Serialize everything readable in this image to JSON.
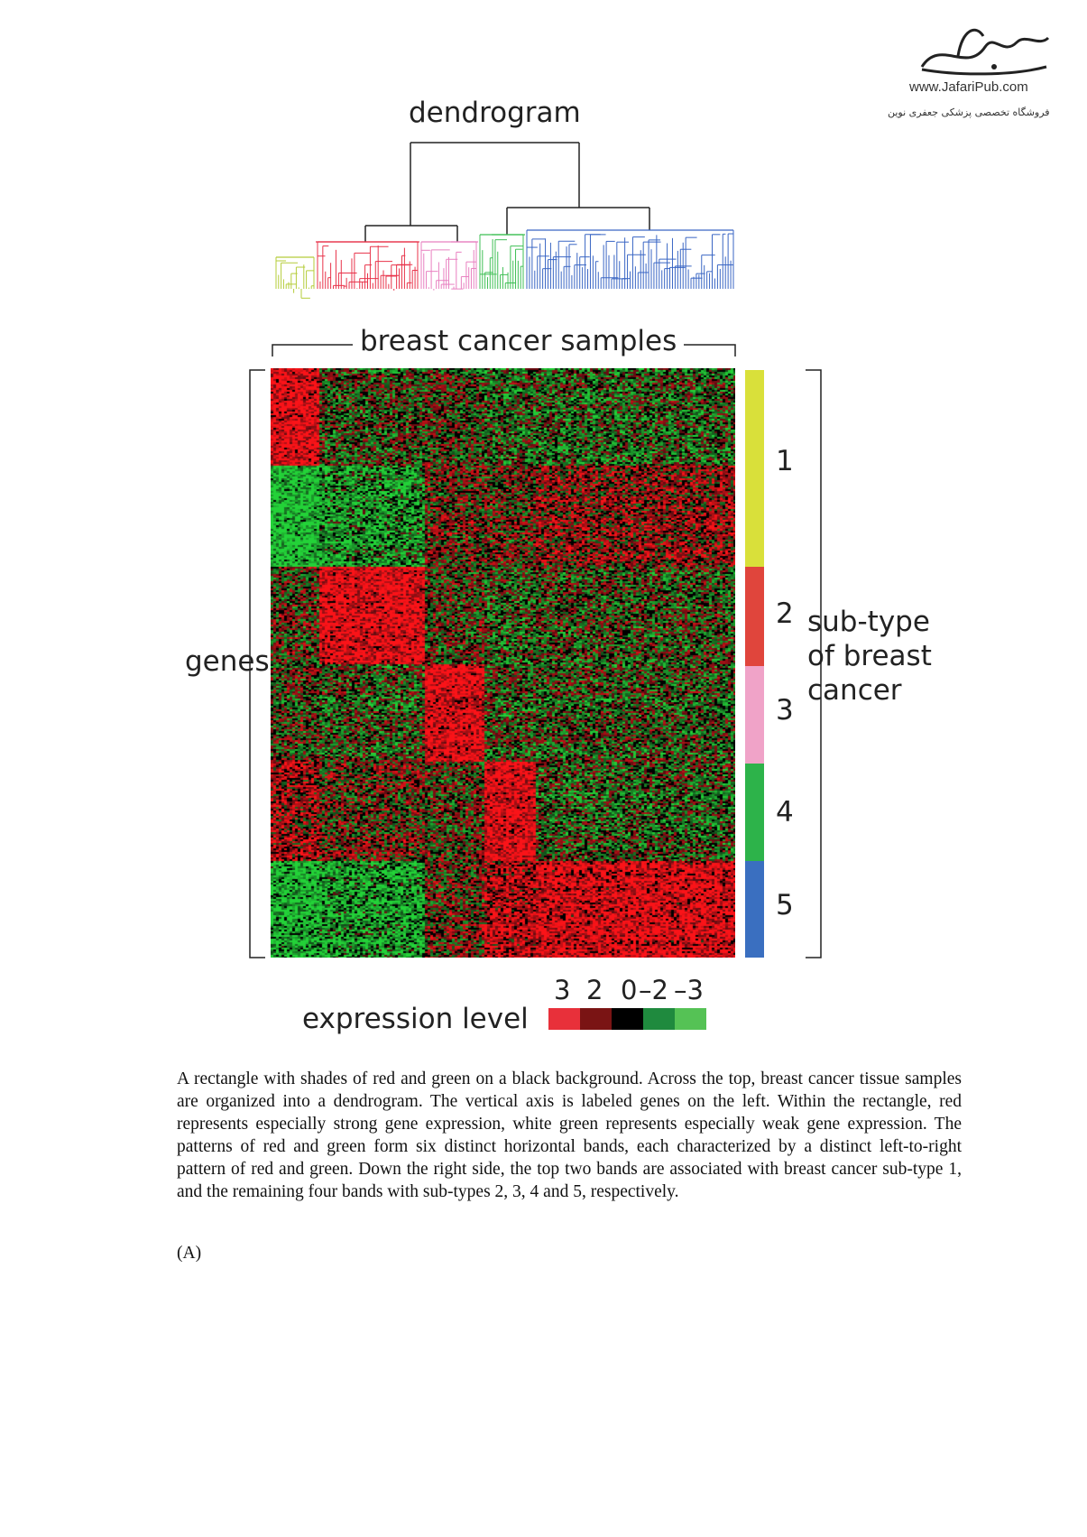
{
  "logo": {
    "url_text": "www.JafariPub.com",
    "subtitle": "فروشگاه تخصصی پزشکی جعفری نوین"
  },
  "figure": {
    "dendrogram_label": "dendrogram",
    "samples_label": "breast cancer samples",
    "genes_label": "genes",
    "subtype_label_lines": [
      "sub-type",
      "of breast",
      "cancer"
    ],
    "subtypes": [
      {
        "number": "1",
        "color": "#d9e03a"
      },
      {
        "number": "2",
        "color": "#e0453c"
      },
      {
        "number": "3",
        "color": "#f0a3c8"
      },
      {
        "number": "4",
        "color": "#2db34a"
      },
      {
        "number": "5",
        "color": "#3a6fc0"
      }
    ],
    "dendrogram_cluster_colors": [
      "#b5cc3a",
      "#e8334a",
      "#e880c0",
      "#3fbf55",
      "#3a66c4"
    ],
    "expression_legend": {
      "label": "expression level",
      "ticks": [
        "3",
        "2",
        "0",
        "–2",
        "–3"
      ],
      "colors": [
        "#e8303a",
        "#7a1414",
        "#000000",
        "#1f8a3e",
        "#55c255"
      ]
    }
  },
  "caption": "A rectangle with shades of red and green on a black background. Across the top, breast cancer tissue samples are organized into a dendrogram. The vertical axis is labeled genes on the left. Within the rectangle, red represents especially strong gene expression, white green represents especially weak gene expression. The patterns of red and green form six distinct horizontal bands, each characterized by a distinct left-to-right pattern of red and green. Down the right side, the top two bands are associated with breast cancer sub-type 1, and the remaining four bands with sub-types 2, 3, 4 and 5, respectively.",
  "panel_label": "(A)"
}
